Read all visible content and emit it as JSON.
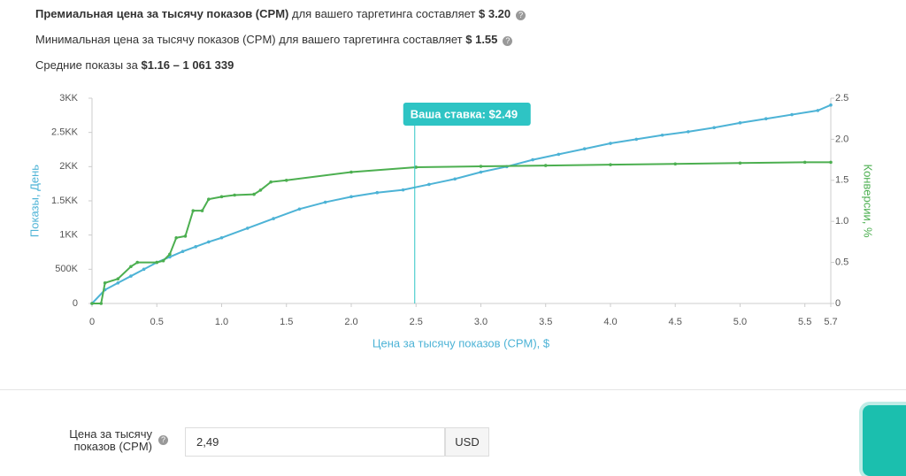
{
  "header": {
    "line1": {
      "bold": "Премиальная цена за тысячу показов (CPM)",
      "text": "для вашего таргетинга составляет",
      "value": "$ 3.20"
    },
    "line2": {
      "text": "Минимальная цена за тысячу показов (CPM) для вашего таргетинга составляет",
      "value": "$ 1.55"
    },
    "line3": {
      "text": "Средние показы за",
      "value": "$1.16 – 1 061 339"
    }
  },
  "chart_data": {
    "type": "line",
    "xlabel": "Цена за тысячу показов (CPM), $",
    "ylabel": "Показы, День",
    "y2label": "Конверсии, %",
    "annotation": {
      "x": 2.49,
      "label": "Ваша ставка: $2.49"
    },
    "xlim": [
      0,
      5.7
    ],
    "xticks": [
      0,
      0.5,
      {
        "value": 1,
        "label": "1.0"
      },
      1.5,
      {
        "value": 2,
        "label": "2.0"
      },
      2.5,
      {
        "value": 3,
        "label": "3.0"
      },
      3.5,
      {
        "value": 4,
        "label": "4.0"
      },
      4.5,
      {
        "value": 5,
        "label": "5.0"
      },
      5.5,
      5.7
    ],
    "ylim": [
      0,
      3000000
    ],
    "yticks": [
      0,
      {
        "value": 500000,
        "label": "500K"
      },
      {
        "value": 1000000,
        "label": "1KK"
      },
      {
        "value": 1500000,
        "label": "1.5KK"
      },
      {
        "value": 2000000,
        "label": "2KK"
      },
      {
        "value": 2500000,
        "label": "2.5KK"
      },
      {
        "value": 3000000,
        "label": "3KK"
      }
    ],
    "y2lim": [
      0,
      2.5
    ],
    "y2ticks": [
      0,
      0.5,
      {
        "value": 1,
        "label": "1.0"
      },
      1.5,
      {
        "value": 2,
        "label": "2.0"
      },
      2.5
    ],
    "series": [
      {
        "color": "#4db3d6",
        "x": [
          0,
          0.1,
          0.2,
          0.3,
          0.4,
          0.5,
          0.6,
          0.7,
          0.8,
          0.9,
          1.0,
          1.2,
          1.4,
          1.6,
          1.8,
          2.0,
          2.2,
          2.4,
          2.6,
          2.8,
          3.0,
          3.2,
          3.4,
          3.6,
          3.8,
          4.0,
          4.2,
          4.4,
          4.6,
          4.8,
          5.0,
          5.2,
          5.4,
          5.6,
          5.7
        ],
        "values": [
          0,
          200000,
          300000,
          400000,
          500000,
          600000,
          680000,
          760000,
          830000,
          900000,
          960000,
          1100000,
          1240000,
          1380000,
          1480000,
          1560000,
          1620000,
          1660000,
          1740000,
          1820000,
          1920000,
          2000000,
          2100000,
          2180000,
          2260000,
          2340000,
          2400000,
          2460000,
          2510000,
          2570000,
          2640000,
          2700000,
          2760000,
          2820000,
          2900000
        ]
      },
      {
        "color": "#4caf50",
        "axis": "y2",
        "x": [
          0,
          0.07,
          0.1,
          0.2,
          0.3,
          0.35,
          0.5,
          0.55,
          0.6,
          0.65,
          0.72,
          0.78,
          0.85,
          0.9,
          1.0,
          1.1,
          1.25,
          1.3,
          1.38,
          1.5,
          2.0,
          2.5,
          3.0,
          3.5,
          4.0,
          4.5,
          5.0,
          5.5,
          5.7
        ],
        "values": [
          0,
          0,
          0.25,
          0.3,
          0.45,
          0.5,
          0.5,
          0.52,
          0.6,
          0.8,
          0.82,
          1.13,
          1.13,
          1.27,
          1.3,
          1.32,
          1.33,
          1.38,
          1.48,
          1.5,
          1.6,
          1.66,
          1.67,
          1.68,
          1.69,
          1.7,
          1.71,
          1.72,
          1.72
        ]
      }
    ]
  },
  "form": {
    "label": "Цена за тысячу показов (CPM)",
    "input": "2,49",
    "unit": "USD"
  }
}
